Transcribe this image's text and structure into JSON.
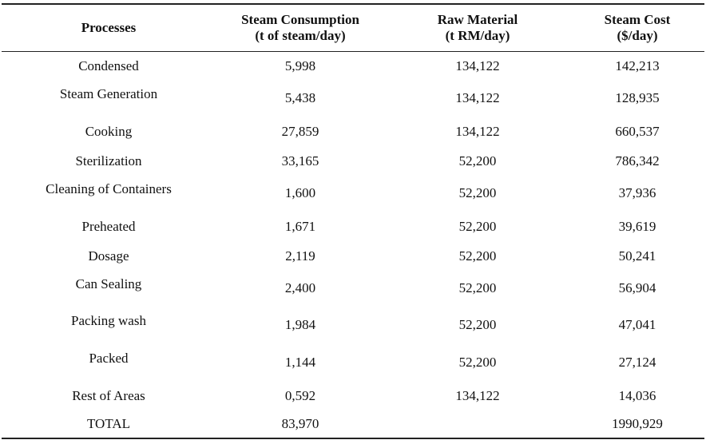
{
  "table": {
    "headers": [
      {
        "line1": "Processes",
        "line2": ""
      },
      {
        "line1": "Steam Consumption",
        "line2": "(t of steam/day)"
      },
      {
        "line1": "Raw Material",
        "line2": "(t RM/day)"
      },
      {
        "line1": "Steam Cost",
        "line2": "($/day)"
      }
    ],
    "rows": [
      {
        "process": "Condensed",
        "steam": "5,998",
        "raw": "134,122",
        "cost": "142,213"
      },
      {
        "process": "Steam Generation",
        "steam": "5,438",
        "raw": "134,122",
        "cost": "128,935"
      },
      {
        "process": "Cooking",
        "steam": "27,859",
        "raw": "134,122",
        "cost": "660,537"
      },
      {
        "process": "Sterilization",
        "steam": "33,165",
        "raw": "52,200",
        "cost": "786,342"
      },
      {
        "process": "Cleaning of Containers",
        "steam": "1,600",
        "raw": "52,200",
        "cost": "37,936"
      },
      {
        "process": "Preheated",
        "steam": "1,671",
        "raw": "52,200",
        "cost": "39,619"
      },
      {
        "process": "Dosage",
        "steam": "2,119",
        "raw": "52,200",
        "cost": "50,241"
      },
      {
        "process": "Can Sealing",
        "steam": "2,400",
        "raw": "52,200",
        "cost": "56,904"
      },
      {
        "process": "Packing wash",
        "steam": "1,984",
        "raw": "52,200",
        "cost": "47,041"
      },
      {
        "process": "Packed",
        "steam": "1,144",
        "raw": "52,200",
        "cost": "27,124"
      },
      {
        "process": "Rest of Areas",
        "steam": "0,592",
        "raw": "134,122",
        "cost": "14,036"
      },
      {
        "process": "TOTAL",
        "steam": "83,970",
        "raw": "",
        "cost": "1990,929"
      }
    ]
  }
}
